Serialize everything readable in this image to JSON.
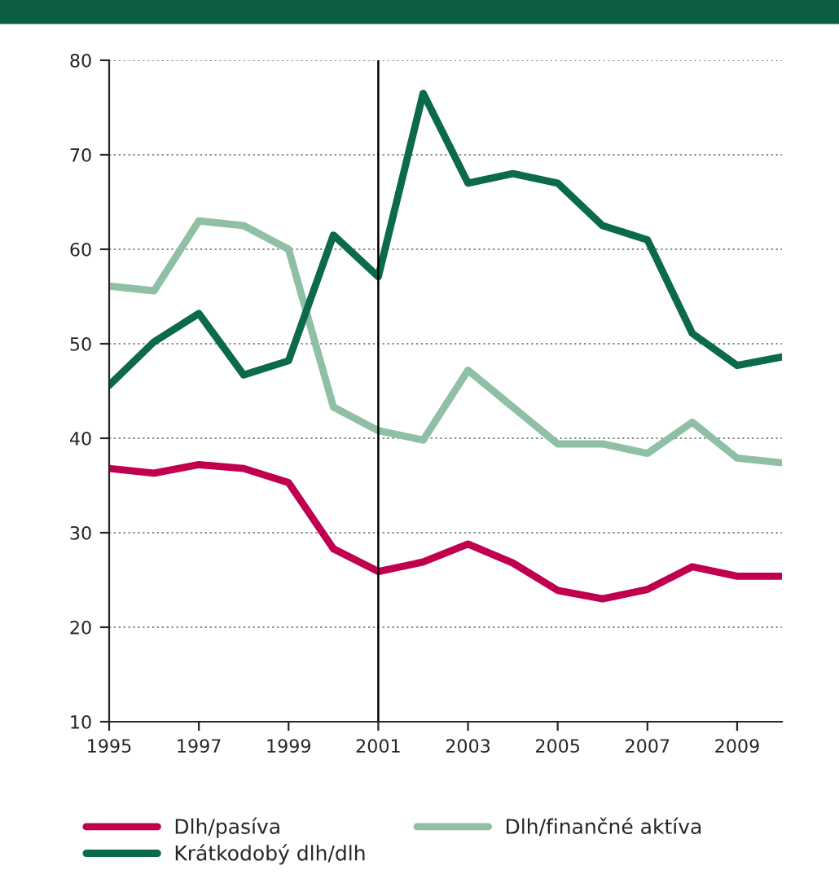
{
  "chart_data": {
    "type": "line",
    "x": [
      1995,
      1996,
      1997,
      1998,
      1999,
      2000,
      2001,
      2002,
      2003,
      2004,
      2005,
      2006,
      2007,
      2008,
      2009,
      2010
    ],
    "series": [
      {
        "name": "Dlh/pasíva",
        "color": "#c0004f",
        "values": [
          36.8,
          36.3,
          37.2,
          36.8,
          35.3,
          28.3,
          25.9,
          26.9,
          28.8,
          26.8,
          23.9,
          23.0,
          24.0,
          26.4,
          25.4,
          25.4
        ]
      },
      {
        "name": "Dlh/finančné aktíva",
        "color": "#8fbfa5",
        "values": [
          56.1,
          55.6,
          63.0,
          62.5,
          60.0,
          43.3,
          40.8,
          39.8,
          47.2,
          43.3,
          39.4,
          39.4,
          38.4,
          41.7,
          37.9,
          37.4
        ]
      },
      {
        "name": "Krátkodobý dlh/dlh",
        "color": "#0b6a4b",
        "values": [
          45.6,
          50.2,
          53.2,
          46.7,
          48.2,
          61.5,
          57.1,
          76.5,
          67.0,
          68.0,
          67.0,
          62.5,
          61.0,
          51.1,
          47.7,
          48.6
        ]
      }
    ],
    "xlim": [
      1995,
      2010
    ],
    "xticks": [
      1995,
      1997,
      1999,
      2001,
      2003,
      2005,
      2007,
      2009
    ],
    "ylim": [
      10,
      80
    ],
    "yticks": [
      10,
      20,
      30,
      40,
      50,
      60,
      70,
      80
    ],
    "ref_lines": [
      {
        "axis": "x",
        "value": 2001,
        "color": "#000000"
      }
    ],
    "grid": "y",
    "legend": "bottom",
    "marker": "none",
    "line_style": "solid"
  }
}
